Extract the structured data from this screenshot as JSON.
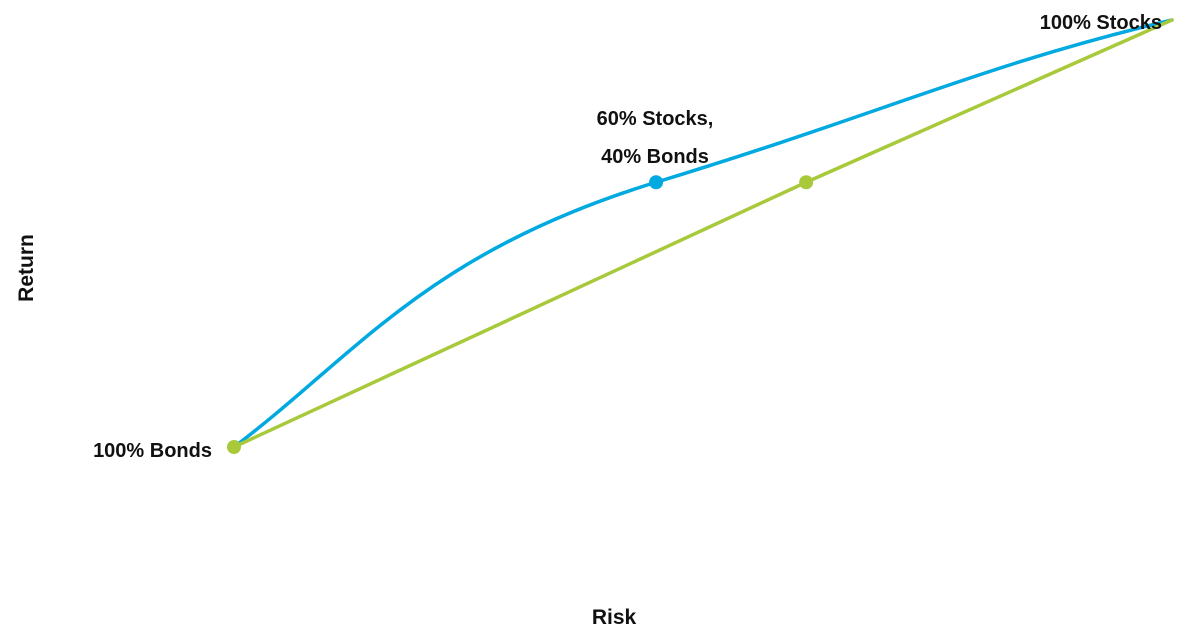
{
  "chart_data": {
    "type": "line",
    "xlabel": "Risk",
    "ylabel": "Return",
    "grid": false,
    "legend": "none",
    "series": [
      {
        "color": "#00a9e0",
        "points": [
          [
            0,
            0
          ],
          [
            0.45,
            0.62
          ],
          [
            1,
            1
          ]
        ]
      },
      {
        "color": "#a8c93a",
        "points": [
          [
            0,
            0
          ],
          [
            0.61,
            0.62
          ],
          [
            1,
            1
          ]
        ]
      }
    ],
    "markers": [
      {
        "x": 0,
        "y": 0,
        "color": "#a8c93a"
      },
      {
        "x": 0.45,
        "y": 0.62,
        "color": "#00a9e0"
      },
      {
        "x": 0.61,
        "y": 0.62,
        "color": "#a8c93a"
      }
    ],
    "annotations": [
      {
        "id": "bonds",
        "lines": [
          "100% Bonds"
        ]
      },
      {
        "id": "mix",
        "lines": [
          "60% Stocks,",
          "40% Bonds"
        ]
      },
      {
        "id": "stocks",
        "lines": [
          "100% Stocks"
        ]
      }
    ]
  }
}
